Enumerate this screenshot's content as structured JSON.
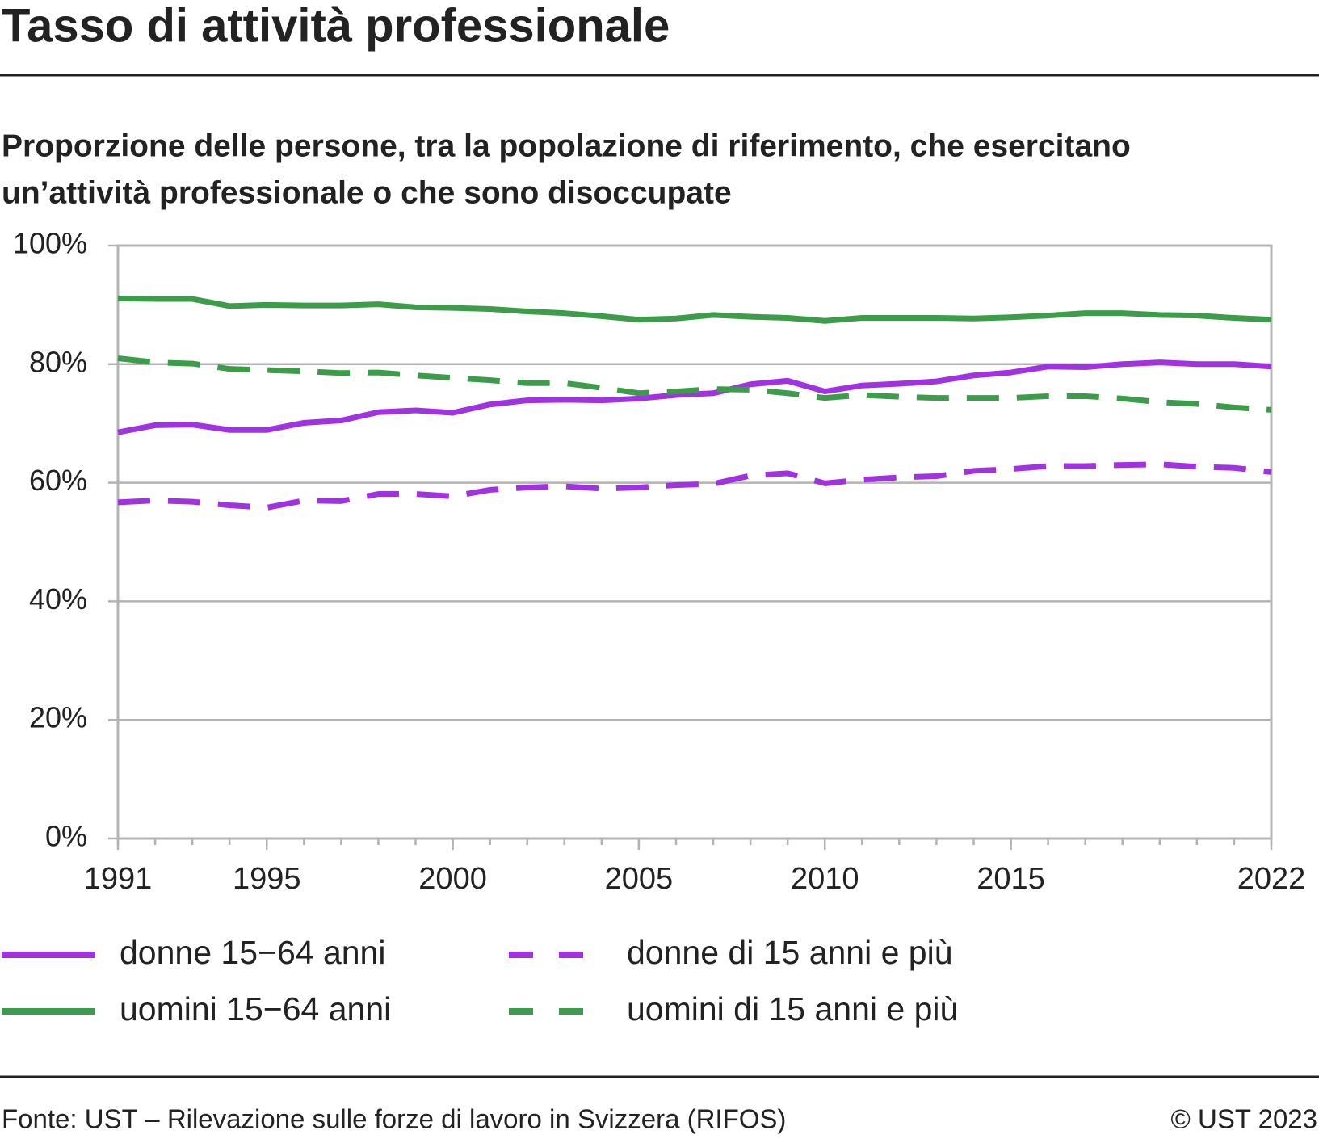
{
  "chart_data": {
    "type": "line",
    "title": "Tasso di attività professionale",
    "subtitle": [
      "Proporzione delle persone, tra la popolazione di riferimento, che esercitano",
      "un’attività professionale o che sono disoccupate"
    ],
    "x": [
      1991,
      1992,
      1993,
      1994,
      1995,
      1996,
      1997,
      1998,
      1999,
      2000,
      2001,
      2002,
      2003,
      2004,
      2005,
      2006,
      2007,
      2008,
      2009,
      2010,
      2011,
      2012,
      2013,
      2014,
      2015,
      2016,
      2017,
      2018,
      2019,
      2020,
      2021,
      2022
    ],
    "xlim": [
      1991,
      2022
    ],
    "xticks": [
      1991,
      1995,
      2000,
      2005,
      2010,
      2015,
      2022
    ],
    "ylim": [
      0,
      100
    ],
    "yticks": [
      {
        "value": 0,
        "label": "0%"
      },
      {
        "value": 20,
        "label": "20%"
      },
      {
        "value": 40,
        "label": "40%"
      },
      {
        "value": 60,
        "label": "60%"
      },
      {
        "value": 80,
        "label": "80%"
      },
      {
        "value": 100,
        "label": "100%"
      }
    ],
    "grid": true,
    "series": [
      {
        "name": "donne 15−64 anni",
        "color": "#a033e0",
        "style": "solid",
        "values": [
          68.5,
          69.7,
          69.8,
          68.9,
          68.9,
          70.1,
          70.5,
          71.9,
          72.2,
          71.8,
          73.2,
          73.9,
          74.0,
          73.9,
          74.2,
          74.8,
          75.1,
          76.6,
          77.2,
          75.4,
          76.4,
          76.7,
          77.1,
          78.1,
          78.6,
          79.6,
          79.5,
          80.0,
          80.3,
          80.0,
          80.0,
          79.6
        ]
      },
      {
        "name": "uomini 15−64 anni",
        "color": "#3d9c4a",
        "style": "solid",
        "values": [
          91.1,
          91.0,
          91.0,
          89.8,
          90.0,
          89.9,
          89.9,
          90.1,
          89.6,
          89.5,
          89.3,
          88.9,
          88.6,
          88.1,
          87.5,
          87.7,
          88.3,
          88.0,
          87.8,
          87.3,
          87.8,
          87.8,
          87.8,
          87.7,
          87.9,
          88.2,
          88.6,
          88.6,
          88.3,
          88.2,
          87.8,
          87.5
        ]
      },
      {
        "name": "donne di 15 anni e più",
        "color": "#a033e0",
        "style": "dashed",
        "values": [
          56.7,
          57.0,
          56.8,
          56.2,
          55.8,
          57.0,
          56.9,
          58.1,
          58.1,
          57.7,
          58.8,
          59.2,
          59.4,
          59.0,
          59.2,
          59.6,
          59.8,
          61.2,
          61.6,
          59.9,
          60.5,
          60.9,
          61.1,
          62.0,
          62.3,
          62.8,
          62.8,
          63.0,
          63.1,
          62.7,
          62.5,
          61.8
        ]
      },
      {
        "name": "uomini di 15 anni e più",
        "color": "#3d9c4a",
        "style": "dashed",
        "values": [
          81.0,
          80.3,
          80.1,
          79.2,
          79.0,
          78.8,
          78.5,
          78.6,
          78.1,
          77.7,
          77.3,
          76.8,
          76.8,
          76.0,
          75.1,
          75.4,
          75.8,
          75.7,
          75.1,
          74.3,
          74.8,
          74.5,
          74.3,
          74.3,
          74.3,
          74.6,
          74.6,
          74.2,
          73.6,
          73.3,
          72.7,
          72.3
        ]
      }
    ],
    "source": "Fonte: UST – Rilevazione sulle forze di lavoro in Svizzera (RIFOS)",
    "copyright": "© UST 2023"
  }
}
